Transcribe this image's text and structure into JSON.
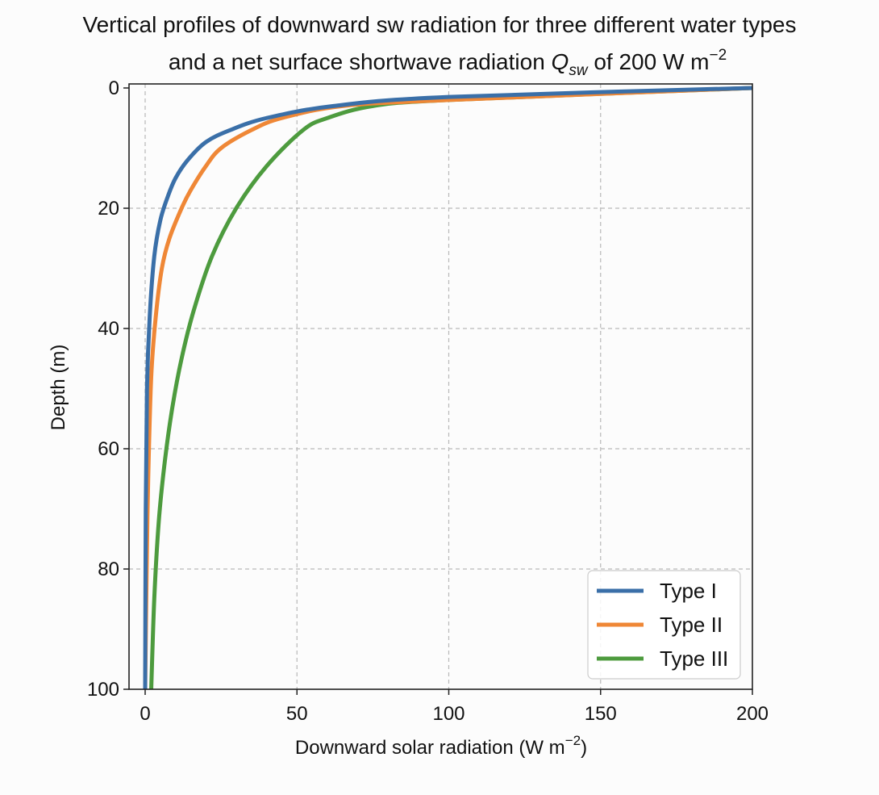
{
  "chart_data": {
    "type": "line",
    "title_line1": "Vertical profiles of downward sw radiation for three different water types",
    "title_line2_prefix": "and a net surface shortwave radiation ",
    "title_symbol": "Q",
    "title_symbol_sub": "sw",
    "title_line2_suffix": " of 200 W m",
    "title_line2_sup": "−2",
    "xlabel_prefix": "Downward solar radiation (W m",
    "xlabel_sup": "−2",
    "xlabel_suffix": ")",
    "ylabel": "Depth (m)",
    "xlim": [
      0,
      200
    ],
    "ylim": [
      100,
      0
    ],
    "y_inverted": true,
    "x_ticks": [
      0,
      50,
      100,
      150,
      200
    ],
    "y_ticks": [
      0,
      20,
      40,
      60,
      80,
      100
    ],
    "grid": true,
    "legend_position": "lower-right",
    "colors": {
      "type_1": "#3a6fa8",
      "type_2": "#ef8736",
      "type_3": "#4d9b3e"
    },
    "series": [
      {
        "name": "Type I",
        "color": "#3a6fa8",
        "x": [
          200,
          100,
          62,
          40,
          28,
          20,
          14,
          10,
          7.5,
          5,
          3,
          1.5,
          0.6,
          0.2,
          0
        ],
        "y": [
          0,
          1.5,
          3,
          5,
          7,
          9,
          12,
          15,
          18,
          22,
          28,
          38,
          50,
          70,
          100
        ]
      },
      {
        "name": "Type II",
        "color": "#ef8736",
        "x": [
          200,
          100,
          65,
          45,
          35,
          25,
          20,
          15,
          12,
          8,
          5.5,
          3.5,
          2,
          1,
          0.5,
          0
        ],
        "y": [
          0,
          2,
          3,
          5,
          7,
          10,
          13,
          17,
          20,
          25,
          30,
          38,
          48,
          65,
          80,
          100
        ]
      },
      {
        "name": "Type III",
        "color": "#4d9b3e",
        "x": [
          200,
          100,
          75,
          60,
          52,
          40,
          30,
          22,
          16,
          12,
          9,
          6.5,
          4.5,
          3,
          2
        ],
        "y": [
          0,
          2,
          3,
          5,
          7,
          13,
          20,
          28,
          37,
          45,
          53,
          62,
          72,
          85,
          100
        ]
      }
    ]
  }
}
